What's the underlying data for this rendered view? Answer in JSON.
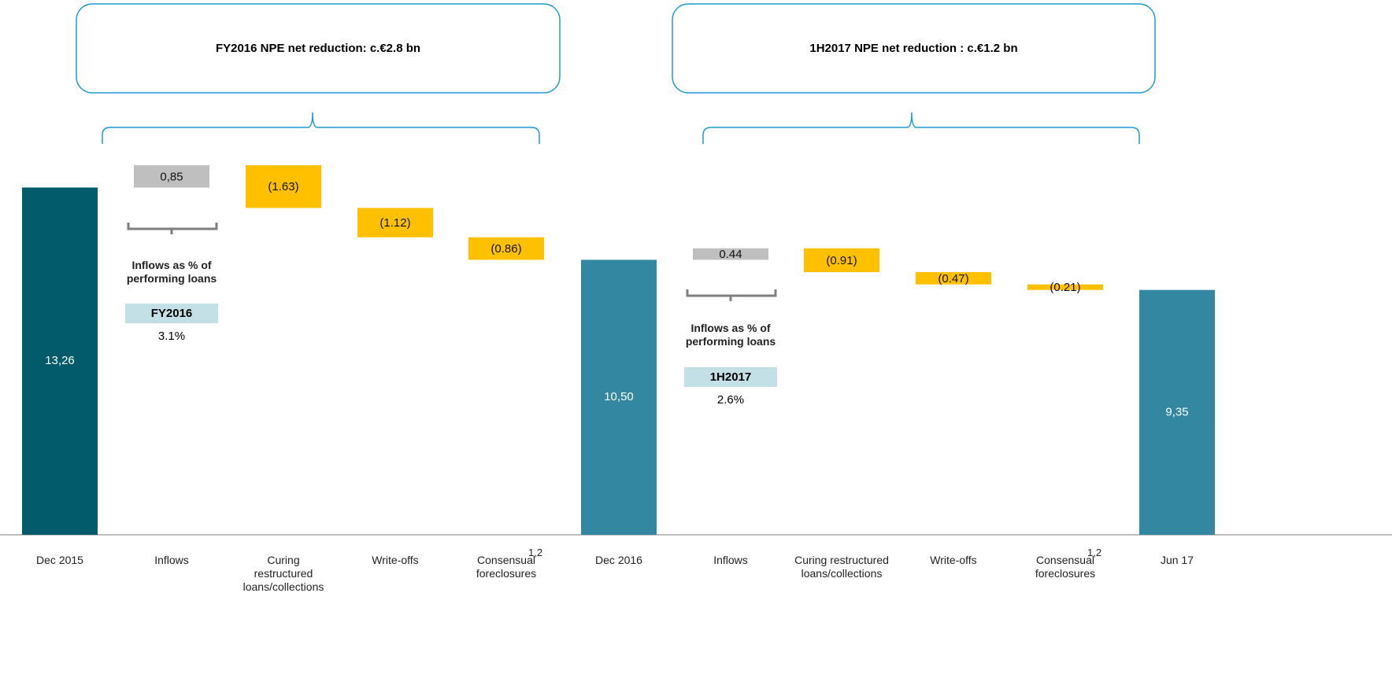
{
  "chart_data": {
    "type": "waterfall",
    "categories": [
      "Dec 2015",
      "Inflows",
      "Curing restructured loans/collections",
      "Write-offs",
      "Consensual foreclosures",
      "Dec 2016",
      "Inflows",
      "Curing restructured loans/collections",
      "Write-offs",
      "Consensual foreclosures",
      "Jun 17"
    ],
    "category_superscripts": [
      null,
      null,
      null,
      null,
      "1,2",
      null,
      null,
      null,
      null,
      "1,2",
      null
    ],
    "values": [
      13.26,
      0.85,
      -1.63,
      -1.12,
      -0.86,
      10.5,
      0.44,
      -0.91,
      -0.47,
      -0.21,
      9.35
    ],
    "value_labels": [
      "13,26",
      "0,85",
      "(1.63)",
      "(1.12)",
      "(0.86)",
      "10,50",
      "0.44",
      "(0.91)",
      "(0.47)",
      "(0.21)",
      "9,35"
    ],
    "colors": {
      "start_total": "#025b6b",
      "total": "#3387a0",
      "increase": "#bfbfbf",
      "decrease": "#ffc000"
    },
    "groups": [
      {
        "title": "FY2016 NPE net reduction: c.€2.8 bn",
        "note": "Inflows as % of performing loans",
        "period": "FY2016",
        "rate": "3.1%"
      },
      {
        "title": "1H2017 NPE net reduction : c.€1.2 bn",
        "note": "Inflows as % of performing loans",
        "period": "1H2017",
        "rate": "2.6%"
      }
    ]
  }
}
